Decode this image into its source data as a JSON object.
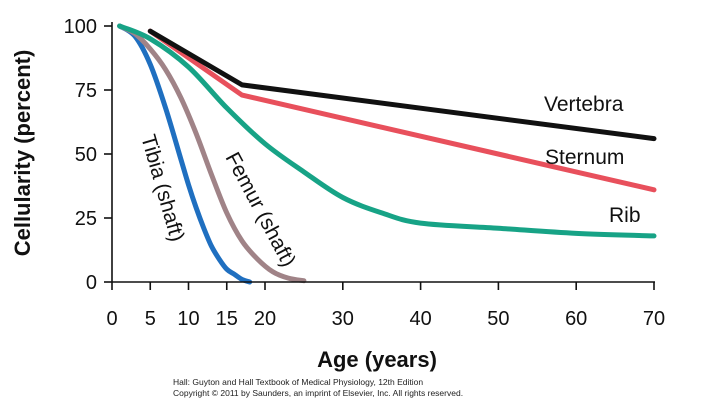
{
  "chart_data": {
    "type": "line",
    "xlabel": "Age (years)",
    "ylabel": "Cellularity (percent)",
    "xlim": [
      0,
      70
    ],
    "ylim": [
      0,
      100
    ],
    "x_ticks": [
      0,
      5,
      10,
      15,
      20,
      30,
      40,
      50,
      60,
      70
    ],
    "x_tick_labels": [
      "0",
      "5",
      "10",
      "15",
      "20",
      "30",
      "40",
      "50",
      "60",
      "70"
    ],
    "y_ticks": [
      0,
      25,
      50,
      75,
      100
    ],
    "y_tick_labels": [
      "0",
      "25",
      "50",
      "75",
      "100"
    ],
    "grid": false,
    "series": [
      {
        "name": "Tibia (shaft)",
        "color": "#1f6fc0",
        "x": [
          1,
          3,
          5,
          7,
          9,
          10,
          11,
          12,
          13,
          14,
          15,
          16,
          17,
          18
        ],
        "y": [
          100,
          96,
          85,
          68,
          48,
          38,
          29,
          21,
          14,
          9,
          5,
          3,
          1,
          0
        ]
      },
      {
        "name": "Femur (shaft)",
        "color": "#a08387",
        "x": [
          1,
          3,
          5,
          7,
          9,
          11,
          13,
          15,
          17,
          19,
          21,
          23,
          25
        ],
        "y": [
          100,
          97,
          91,
          83,
          72,
          58,
          42,
          27,
          16,
          9,
          4,
          1.5,
          0.5
        ]
      },
      {
        "name": "Rib",
        "color": "#17a386",
        "x": [
          1,
          5,
          10,
          15,
          20,
          25,
          30,
          35,
          40,
          50,
          60,
          70
        ],
        "y": [
          100,
          95,
          84,
          68,
          54,
          43,
          33,
          27,
          23,
          21,
          19,
          18
        ]
      },
      {
        "name": "Sternum",
        "color": "#e8505c",
        "x": [
          5,
          17,
          70
        ],
        "y": [
          98,
          73,
          36
        ]
      },
      {
        "name": "Vertebra",
        "color": "#111111",
        "x": [
          5,
          17,
          70
        ],
        "y": [
          98,
          77,
          56
        ]
      }
    ]
  },
  "labels": {
    "tibia": "Tibia (shaft)",
    "femur": "Femur (shaft)",
    "rib": "Rib",
    "sternum": "Sternum",
    "vertebra": "Vertebra"
  },
  "credit": {
    "line1": "Hall: Guyton and Hall Textbook of Medical Physiology, 12th Edition",
    "line2": "Copyright © 2011 by Saunders, an imprint of Elsevier, Inc. All rights reserved."
  }
}
